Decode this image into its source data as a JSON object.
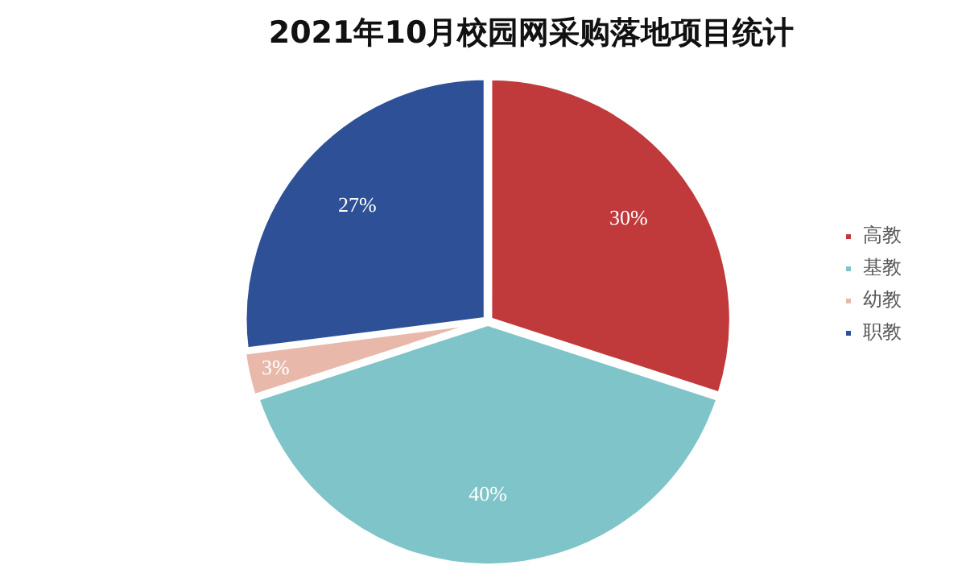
{
  "chart_data": {
    "type": "pie",
    "title": "2021年10月校园网采购落地项目统计",
    "categories": [
      "高教",
      "基教",
      "幼教",
      "职教"
    ],
    "values": [
      30,
      40,
      3,
      27
    ],
    "value_labels": [
      "30%",
      "40%",
      "3%",
      "27%"
    ],
    "colors": [
      "#c0393b",
      "#7fc4c8",
      "#e8b9ab",
      "#2e5096"
    ],
    "legend": "right"
  }
}
